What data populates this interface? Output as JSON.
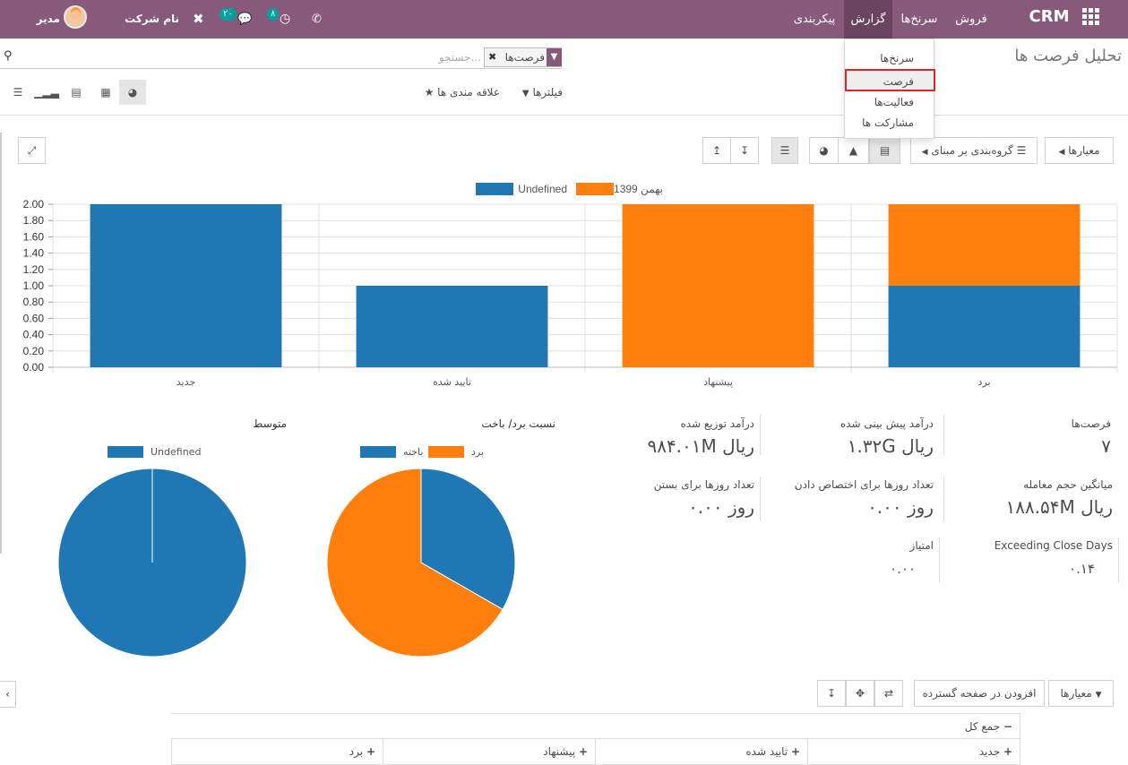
{
  "navbar": {
    "brand": "CRM",
    "menus": [
      "فروش",
      "سرنخ‌ها",
      "گزارش",
      "پیکربندی"
    ],
    "company": "نام شرکت شما",
    "user": "مدیر سیستم",
    "activity_count": "۸",
    "message_count": "۲۰",
    "colors": {
      "bar": "#875a7b",
      "active": "#6b4560",
      "badge": "#00a09d"
    }
  },
  "report_menu": {
    "items": [
      "سرنخ‌ها",
      "فرصت",
      "فعالیت‌ها",
      "مشارکت ها"
    ],
    "highlighted": "فرصت"
  },
  "control_panel": {
    "title": "تحلیل فرصت ها",
    "search_facet": "فرصت‌ها",
    "search_placeholder": "جستجو...",
    "filters_label": "فیلترها",
    "favorites_label": "علاقه مندی ها",
    "view_icons": [
      "dashboard-icon",
      "table-icon",
      "graph-icon",
      "cohort-icon",
      "list-icon"
    ]
  },
  "graph_toolbar": {
    "measures_label": "معیارها",
    "groupby_label": "گروه‌بندی بر مبنای",
    "chart_types": [
      "bar-chart-icon",
      "line-chart-icon",
      "pie-chart-icon"
    ],
    "stacked_icon": "stack-icon",
    "sort_icons": [
      "sort-desc-icon",
      "sort-asc-icon"
    ],
    "expand_icon": "expand-icon"
  },
  "chart_data": {
    "type": "bar",
    "stacked": true,
    "categories": [
      "جدید",
      "تایید شده",
      "پیشنهاد",
      "برد"
    ],
    "series": [
      {
        "name": "Undefined",
        "color": "#1f77b4",
        "values": [
          2,
          1,
          0,
          1
        ]
      },
      {
        "name": "بهمن 1399",
        "color": "#ff7f0e",
        "values": [
          0,
          0,
          2,
          1
        ]
      }
    ],
    "ylim": [
      0,
      2
    ],
    "yticks": [
      "0.00",
      "0.20",
      "0.40",
      "0.60",
      "0.80",
      "1.00",
      "1.20",
      "1.40",
      "1.60",
      "1.80",
      "2.00"
    ],
    "grid": true,
    "legend": "top-center",
    "xlabel": "",
    "ylabel": "",
    "title": ""
  },
  "kpis": {
    "opportunities": {
      "label": "فرصت‌ها",
      "value": "۷"
    },
    "expected_revenue": {
      "label": "درآمد پیش بینی شده",
      "value": "۱.۳۲G ریال"
    },
    "prorated_revenue": {
      "label": "درآمد توزیع شده",
      "value": "۹۸۴.۰۱M ریال"
    },
    "avg_deal_size": {
      "label": "میانگین حجم معامله",
      "value": "۱۸۸.۵۴M ریال"
    },
    "days_to_assign": {
      "label": "تعداد روزها برای اختصاص دادن",
      "value": "۰.۰۰ روز"
    },
    "days_to_close": {
      "label": "تعداد روزها برای بستن",
      "value": "۰.۰۰ روز"
    },
    "exceeding_close_days": {
      "label": "Exceeding Close Days",
      "value": "۰.۱۴"
    },
    "score": {
      "label": "امتیاز",
      "value": "۰.۰۰"
    }
  },
  "pies": {
    "win_loss": {
      "title": "نسبت برد/ باخت",
      "legend": [
        "برد",
        "باخته"
      ],
      "values": [
        0.667,
        0.333
      ],
      "colors": [
        "#ff7f0e",
        "#1f77b4"
      ]
    },
    "average": {
      "title": "متوسط",
      "legend": [
        "Undefined"
      ],
      "values": [
        1
      ],
      "colors": [
        "#1f77b4"
      ]
    }
  },
  "pivot": {
    "measures_label": "معیارها",
    "add_to_dashboard": "افزودن در صفحه گسترده",
    "header_total": "جمع کل",
    "columns": [
      "جدید",
      "تایید شده",
      "پیشنهاد",
      "برد"
    ]
  }
}
